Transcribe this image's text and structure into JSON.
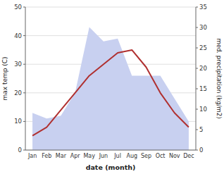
{
  "chart_data": {
    "type": "line",
    "categories": [
      "Jan",
      "Feb",
      "Mar",
      "Apr",
      "May",
      "Jun",
      "Jul",
      "Aug",
      "Sep",
      "Oct",
      "Nov",
      "Dec"
    ],
    "series": [
      {
        "type": "area",
        "color": "#c8d0f0",
        "values": [
          13,
          11,
          12,
          20,
          43,
          38,
          39,
          26,
          26,
          26,
          18,
          10
        ]
      },
      {
        "type": "line",
        "color": "#b03030",
        "values": [
          5,
          8,
          14,
          20,
          26,
          30,
          34,
          35,
          29,
          20,
          13,
          8
        ]
      }
    ],
    "xlabel": "date (month)",
    "ylabel": "max temp (C)",
    "y2label": "med. precipitation (kg/m2)",
    "ylim": [
      0,
      50
    ],
    "yticks": [
      0,
      10,
      20,
      30,
      40,
      50
    ],
    "y2lim": [
      0,
      35
    ],
    "y2ticks": [
      0,
      5,
      10,
      15,
      20,
      25,
      30,
      35
    ],
    "grid": true
  }
}
